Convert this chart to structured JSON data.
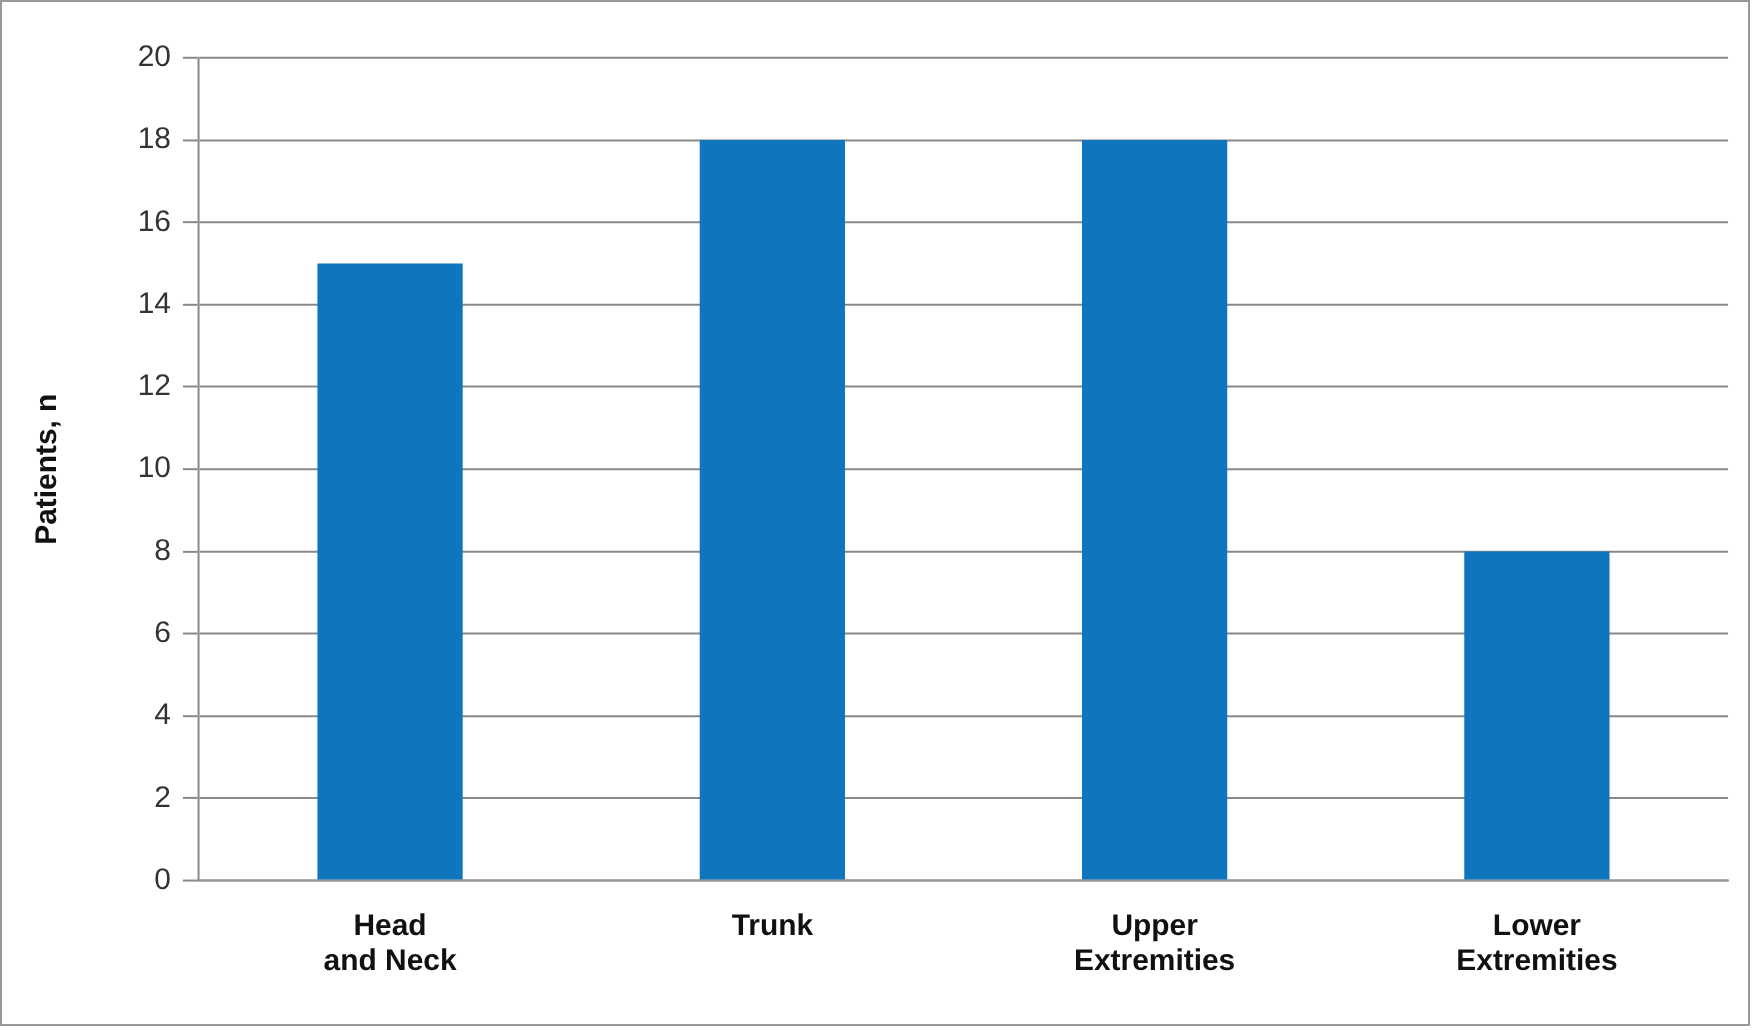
{
  "chart_data": {
    "type": "bar",
    "ylabel": "Patients, n",
    "categories": [
      "Head and Neck",
      "Trunk",
      "Upper Extremities",
      "Lower Extremities"
    ],
    "values": [
      15,
      18,
      18,
      8
    ],
    "color": "#0f75bc",
    "ylim": [
      0,
      20
    ],
    "yticks": [
      0,
      2,
      4,
      6,
      8,
      10,
      12,
      14,
      16,
      18,
      20
    ],
    "grid": "y",
    "legend": false
  }
}
